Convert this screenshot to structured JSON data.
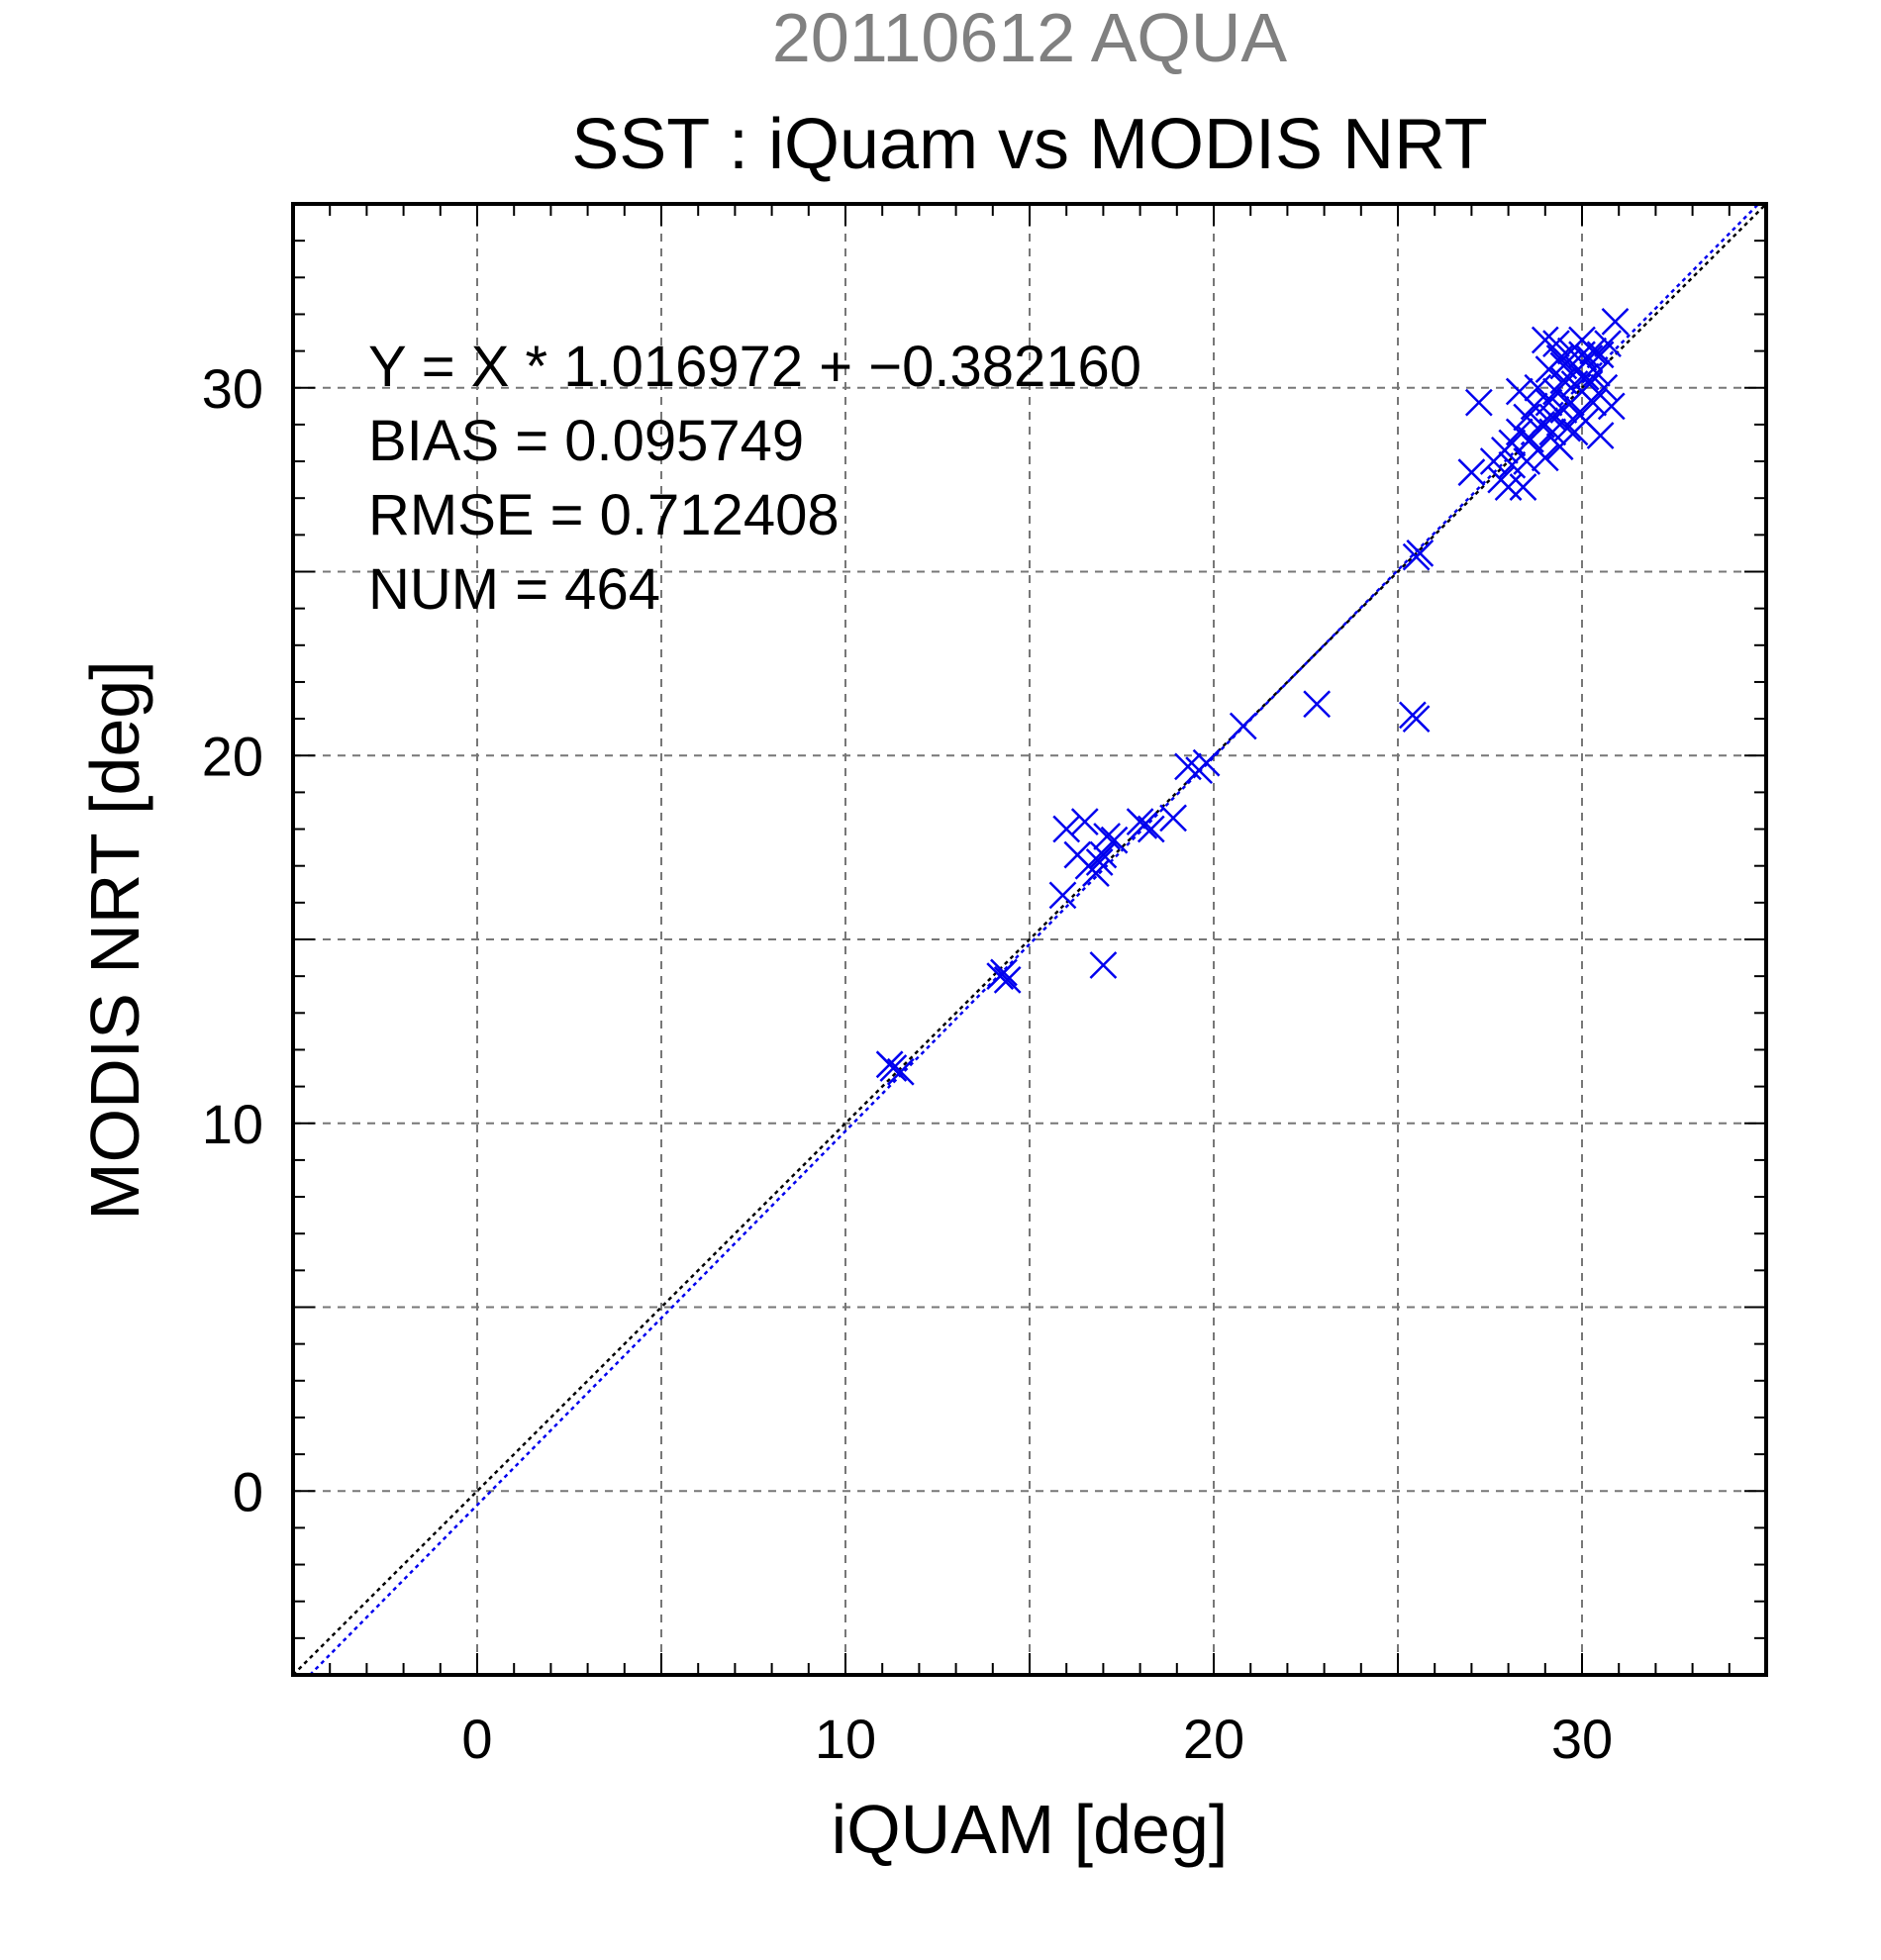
{
  "chart_data": {
    "type": "scatter",
    "date_label": "20110612 AQUA",
    "title": "SST : iQuam vs MODIS NRT",
    "xlabel": "iQUAM [deg]",
    "ylabel": "MODIS NRT [deg]",
    "xlim": [
      -5,
      35
    ],
    "ylim": [
      -5,
      35
    ],
    "xticks": [
      0,
      10,
      20,
      30
    ],
    "yticks": [
      0,
      10,
      20,
      30
    ],
    "grid": true,
    "stats": [
      "Y = X * 1.016972 + −0.382160",
      "BIAS = 0.095749",
      "RMSE = 0.712408",
      "NUM = 464"
    ],
    "regression": {
      "slope": 1.016972,
      "intercept": -0.38216,
      "color": "#0000ee"
    },
    "identity_line": {
      "color": "#000000"
    },
    "marker_color": "#0000ee",
    "series": [
      {
        "points": [
          [
            11.2,
            11.6
          ],
          [
            11.5,
            11.4
          ],
          [
            11.3,
            11.5
          ],
          [
            14.2,
            14.0
          ],
          [
            14.4,
            13.9
          ],
          [
            14.3,
            14.1
          ],
          [
            15.9,
            16.2
          ],
          [
            16.0,
            18.0
          ],
          [
            16.3,
            17.3
          ],
          [
            16.5,
            18.2
          ],
          [
            16.6,
            17.0
          ],
          [
            16.8,
            16.8
          ],
          [
            16.9,
            17.1
          ],
          [
            17.0,
            14.3
          ],
          [
            17.1,
            17.8
          ],
          [
            17.0,
            17.3
          ],
          [
            17.3,
            17.7
          ],
          [
            18.0,
            18.2
          ],
          [
            18.1,
            18.1
          ],
          [
            18.3,
            18.0
          ],
          [
            18.9,
            18.3
          ],
          [
            19.3,
            19.7
          ],
          [
            19.6,
            19.6
          ],
          [
            19.8,
            19.8
          ],
          [
            20.8,
            20.8
          ],
          [
            22.8,
            21.4
          ],
          [
            25.4,
            21.1
          ],
          [
            25.5,
            21.0
          ],
          [
            25.5,
            25.4
          ],
          [
            25.6,
            25.5
          ],
          [
            27.0,
            27.7
          ],
          [
            27.2,
            29.6
          ],
          [
            27.6,
            28.0
          ],
          [
            27.8,
            27.5
          ],
          [
            27.9,
            28.3
          ],
          [
            28.0,
            27.3
          ],
          [
            28.1,
            28.5
          ],
          [
            28.1,
            27.9
          ],
          [
            28.3,
            28.8
          ],
          [
            28.3,
            29.9
          ],
          [
            28.4,
            27.3
          ],
          [
            28.5,
            28.0
          ],
          [
            28.5,
            29.2
          ],
          [
            28.6,
            28.6
          ],
          [
            28.7,
            29.5
          ],
          [
            28.8,
            28.3
          ],
          [
            28.8,
            30.0
          ],
          [
            28.9,
            29.0
          ],
          [
            29.0,
            31.3
          ],
          [
            29.0,
            28.1
          ],
          [
            29.1,
            29.6
          ],
          [
            29.1,
            30.5
          ],
          [
            29.2,
            28.8
          ],
          [
            29.3,
            29.9
          ],
          [
            29.3,
            31.2
          ],
          [
            29.4,
            28.4
          ],
          [
            29.4,
            30.8
          ],
          [
            29.5,
            29.4
          ],
          [
            29.5,
            30.2
          ],
          [
            29.6,
            28.9
          ],
          [
            29.6,
            30.7
          ],
          [
            29.7,
            29.6
          ],
          [
            29.7,
            31.0
          ],
          [
            29.8,
            30.1
          ],
          [
            29.8,
            28.8
          ],
          [
            29.9,
            30.5
          ],
          [
            29.9,
            29.3
          ],
          [
            30.0,
            30.9
          ],
          [
            30.0,
            29.9
          ],
          [
            30.0,
            31.3
          ],
          [
            30.1,
            30.3
          ],
          [
            30.1,
            29.1
          ],
          [
            30.2,
            30.8
          ],
          [
            30.3,
            29.6
          ],
          [
            30.3,
            31.0
          ],
          [
            30.4,
            30.4
          ],
          [
            30.5,
            28.7
          ],
          [
            30.5,
            30.9
          ],
          [
            30.6,
            30.0
          ],
          [
            30.7,
            31.2
          ],
          [
            30.8,
            29.5
          ],
          [
            30.9,
            31.8
          ],
          [
            29.2,
            29.2
          ],
          [
            29.5,
            30.6
          ],
          [
            30.2,
            30.1
          ]
        ]
      }
    ]
  }
}
